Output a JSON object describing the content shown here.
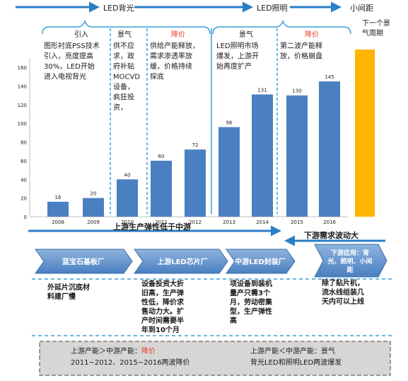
{
  "timeline": {
    "led_backlight": "LED背光",
    "led_lighting": "LED照明",
    "small_pitch": "小间距"
  },
  "phases": [
    {
      "label": "引入",
      "text": [
        "图形衬底PSS技术",
        "引入，亮度提高",
        "30%，LED开始",
        "进入电视背光"
      ],
      "accent": "#1a1a1a"
    },
    {
      "label": "景气",
      "text": [
        "供不应",
        "求，政",
        "府补贴",
        "MOCVD",
        "设备，",
        "疯狂投",
        "资，"
      ],
      "accent": "#1a1a1a"
    },
    {
      "label": "降价",
      "text": [
        "供给产能释放，",
        "需求渗透率放",
        "缓，价格持续",
        "探底"
      ],
      "accent": "#e8402a"
    },
    {
      "label": "景气",
      "text": [
        "LED照明市场",
        "爆发，上游开",
        "始再度扩产"
      ],
      "accent": "#1a1a1a"
    },
    {
      "label": "降价",
      "text": [
        "第二波产能释",
        "放，价格崩盘"
      ],
      "accent": "#e8402a"
    }
  ],
  "next_cycle": [
    "下一个景",
    "气周期"
  ],
  "chart_data": {
    "type": "bar",
    "categories": [
      "2008",
      "2009",
      "2010",
      "2011",
      "2012",
      "2013",
      "2014",
      "2015",
      "2016"
    ],
    "values": [
      16,
      20,
      40,
      60,
      72,
      96,
      131,
      130,
      145
    ],
    "ylim": [
      0,
      170
    ],
    "yticks": [
      0,
      20,
      40,
      60,
      80,
      100,
      120,
      140,
      160
    ],
    "xlabel": "",
    "ylabel": "",
    "title": "",
    "bar_color": "#4a7fc1",
    "highlight_color": "#ffb400",
    "grid": false
  },
  "chain_arrows": {
    "left": "上游生产弹性低于中游",
    "right": "下游需求波动大"
  },
  "chain": [
    {
      "title": "蓝宝石基板厂",
      "notes": [
        "外延片沉底材",
        "料建厂慢"
      ]
    },
    {
      "title": "上游LED芯片厂",
      "notes": [
        "设备投资大折",
        "旧高，生产弹",
        "性低，降价求",
        "售动力大。扩",
        "产时间需要半",
        "年到10个月"
      ]
    },
    {
      "title": "中游LED封装厂",
      "notes": [
        "项设备到装机",
        "量产只需3个",
        "月，劳动密集",
        "型，生产弹性",
        "高"
      ]
    },
    {
      "title": "下游应用：背光、照明、小间距",
      "title_lines": [
        "下游应用：背",
        "光、照明、小间",
        "距"
      ],
      "notes": [
        "除了贴片机，",
        "流水线组装几",
        "天内可以上线"
      ]
    }
  ],
  "summary": {
    "left_prefix": "上游产能＞中游产能：",
    "left_accent": "降价",
    "left_line2": "2011~2012、2015~2016两波降价",
    "right_line1": "上游产能＜中游产能：景气",
    "right_line2": "背光LED和照明LED两波爆发"
  },
  "colors": {
    "blue_line": "#3aa0dc",
    "arrow_blue": "#2a7ec6",
    "red": "#e8402a",
    "box_gray": "#d6d6d6"
  }
}
